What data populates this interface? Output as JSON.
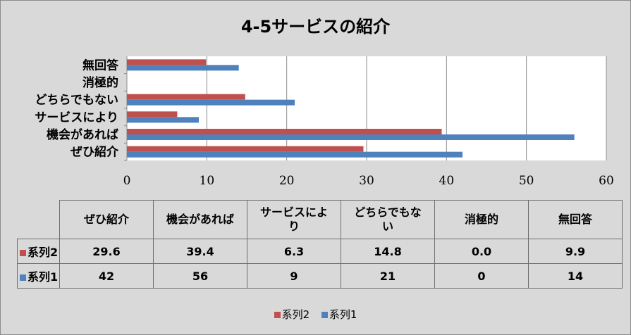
{
  "chart_data": {
    "type": "bar",
    "orientation": "horizontal",
    "title": "4-5サービスの紹介",
    "categories": [
      "ぜひ紹介",
      "機会があれば",
      "サービスにより",
      "どちらでもない",
      "消極的",
      "無回答"
    ],
    "series": [
      {
        "name": "系列2",
        "values": [
          29.6,
          39.4,
          6.3,
          14.8,
          0.0,
          9.9
        ],
        "labels": [
          "29.6",
          "39.4",
          "6.3",
          "14.8",
          "0.0",
          "9.9"
        ],
        "color": "#c0504d"
      },
      {
        "name": "系列1",
        "values": [
          42,
          56,
          9,
          21,
          0,
          14
        ],
        "labels": [
          "42",
          "56",
          "9",
          "21",
          "0",
          "14"
        ],
        "color": "#4f81bd"
      }
    ],
    "table_headers": [
      "ぜひ紹介",
      "機会があれば",
      "サービスによ\nり",
      "どちらでもな\nい",
      "消極的",
      "無回答"
    ],
    "xlim": [
      0,
      60
    ],
    "xticks": [
      "0",
      "10",
      "20",
      "30",
      "40",
      "50",
      "60"
    ],
    "grid": true,
    "legend_position": "bottom"
  }
}
